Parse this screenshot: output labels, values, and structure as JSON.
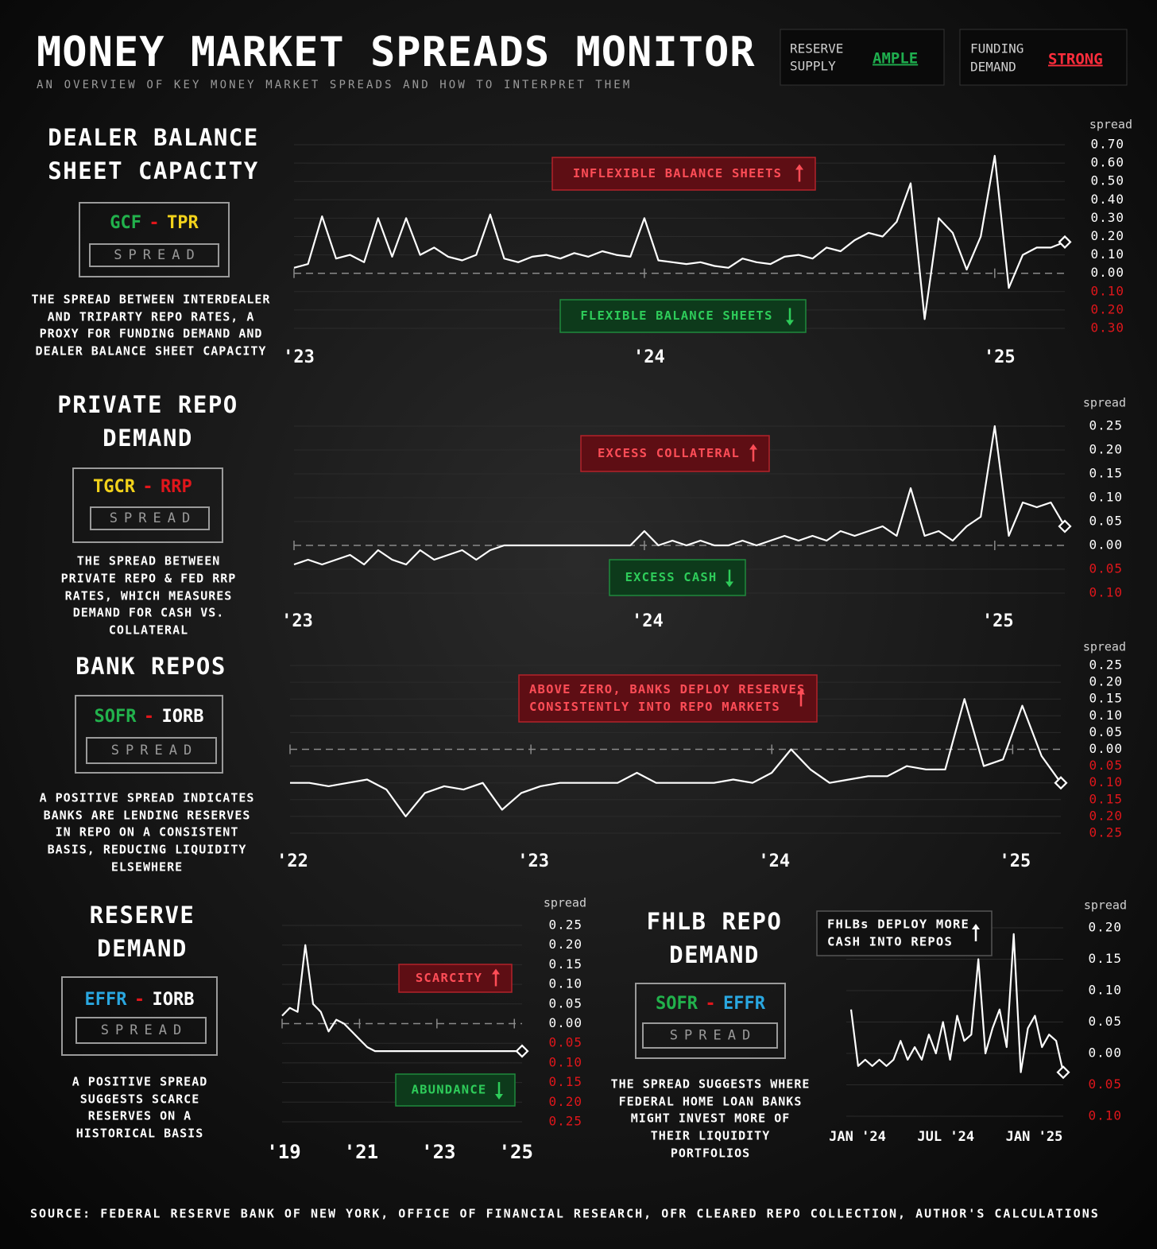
{
  "header": {
    "title": "MONEY MARKET SPREADS MONITOR",
    "subtitle": "AN OVERVIEW OF KEY MONEY MARKET SPREADS AND HOW TO INTERPRET THEM",
    "status": [
      {
        "label": [
          "RESERVE",
          "SUPPLY"
        ],
        "value": "AMPLE",
        "color": "#1fae4e"
      },
      {
        "label": [
          "FUNDING",
          "DEMAND"
        ],
        "value": "STRONG",
        "color": "#ff2d3c"
      }
    ]
  },
  "chart_data": [
    {
      "type": "line",
      "title": [
        "DEALER BALANCE",
        "SHEET CAPACITY"
      ],
      "terms": [
        {
          "text": "GCF",
          "color": "#22b14c"
        },
        {
          "text": "TPR",
          "color": "#f2d21b"
        }
      ],
      "separator": "-",
      "separator_color": "#e0161b",
      "spread_label": "SPREAD",
      "description": [
        "THE SPREAD BETWEEN INTERDEALER",
        "AND TRIPARTY REPO RATES, A",
        "PROXY FOR FUNDING DEMAND AND",
        "DEALER BALANCE SHEET CAPACITY"
      ],
      "y_axis_label": "spread",
      "zero_line": true,
      "tick_color": "#ffffff",
      "negative_tick_color": "#e0161b",
      "annotations": [
        {
          "text": [
            "INFLEXIBLE BALANCE SHEETS"
          ],
          "color": "#ff4d57",
          "arrow": "up"
        },
        {
          "text": [
            "FLEXIBLE BALANCE SHEETS"
          ],
          "color": "#2ecc5a",
          "arrow": "down"
        }
      ],
      "xlim": [
        2023,
        2025.2
      ],
      "xticks": [
        {
          "value": 2023,
          "label": "'23"
        },
        {
          "value": 2024,
          "label": "'24"
        },
        {
          "value": 2025,
          "label": "'25"
        }
      ],
      "ylim": [
        -0.3,
        0.7
      ],
      "yticks": [
        {
          "value": 0.7,
          "label": "0.70"
        },
        {
          "value": 0.6,
          "label": "0.60"
        },
        {
          "value": 0.5,
          "label": "0.50"
        },
        {
          "value": 0.4,
          "label": "0.40"
        },
        {
          "value": 0.3,
          "label": "0.30"
        },
        {
          "value": 0.2,
          "label": "0.20"
        },
        {
          "value": 0.1,
          "label": "0.10"
        },
        {
          "value": 0,
          "label": "0.00"
        },
        {
          "value": -0.1,
          "label": "0.10"
        },
        {
          "value": -0.2,
          "label": "0.20"
        },
        {
          "value": -0.3,
          "label": "0.30"
        }
      ],
      "series": [
        {
          "color": "#ffffff",
          "x": [
            2023,
            2023.04,
            2023.08,
            2023.12,
            2023.16,
            2023.2,
            2023.24,
            2023.28,
            2023.32,
            2023.36,
            2023.4,
            2023.44,
            2023.48,
            2023.52,
            2023.56,
            2023.6,
            2023.64,
            2023.68,
            2023.72,
            2023.76,
            2023.8,
            2023.84,
            2023.88,
            2023.92,
            2023.96,
            2024,
            2024.04,
            2024.08,
            2024.12,
            2024.16,
            2024.2,
            2024.24,
            2024.28,
            2024.32,
            2024.36,
            2024.4,
            2024.44,
            2024.48,
            2024.52,
            2024.56,
            2024.6,
            2024.64,
            2024.68,
            2024.72,
            2024.76,
            2024.8,
            2024.84,
            2024.88,
            2024.92,
            2024.96,
            2025,
            2025.04,
            2025.08,
            2025.12,
            2025.16,
            2025.2
          ],
          "values": [
            0.03,
            0.05,
            0.31,
            0.08,
            0.1,
            0.06,
            0.3,
            0.09,
            0.3,
            0.1,
            0.14,
            0.09,
            0.07,
            0.1,
            0.32,
            0.08,
            0.06,
            0.09,
            0.1,
            0.08,
            0.11,
            0.09,
            0.12,
            0.1,
            0.09,
            0.3,
            0.07,
            0.06,
            0.05,
            0.06,
            0.04,
            0.03,
            0.08,
            0.06,
            0.05,
            0.09,
            0.1,
            0.08,
            0.14,
            0.12,
            0.18,
            0.22,
            0.2,
            0.28,
            0.49,
            -0.25,
            0.3,
            0.22,
            0.02,
            0.2,
            0.64,
            -0.08,
            0.1,
            0.14,
            0.14,
            0.17
          ]
        }
      ]
    },
    {
      "type": "line",
      "title": [
        "PRIVATE REPO",
        "DEMAND"
      ],
      "terms": [
        {
          "text": "TGCR",
          "color": "#f2d21b"
        },
        {
          "text": "RRP",
          "color": "#e0161b"
        }
      ],
      "separator": "-",
      "separator_color": "#e0161b",
      "spread_label": "SPREAD",
      "description": [
        "THE SPREAD BETWEEN",
        "PRIVATE REPO & FED RRP",
        "RATES, WHICH MEASURES",
        "DEMAND FOR CASH VS.",
        "COLLATERAL"
      ],
      "y_axis_label": "spread",
      "zero_line": true,
      "tick_color": "#ffffff",
      "negative_tick_color": "#e0161b",
      "annotations": [
        {
          "text": [
            "EXCESS COLLATERAL"
          ],
          "color": "#ff4d57",
          "arrow": "up"
        },
        {
          "text": [
            "EXCESS CASH"
          ],
          "color": "#2ecc5a",
          "arrow": "down"
        }
      ],
      "xlim": [
        2023,
        2025.2
      ],
      "xticks": [
        {
          "value": 2023,
          "label": "'23"
        },
        {
          "value": 2024,
          "label": "'24"
        },
        {
          "value": 2025,
          "label": "'25"
        }
      ],
      "ylim": [
        -0.1,
        0.25
      ],
      "yticks": [
        {
          "value": 0.25,
          "label": "0.25"
        },
        {
          "value": 0.2,
          "label": "0.20"
        },
        {
          "value": 0.15,
          "label": "0.15"
        },
        {
          "value": 0.1,
          "label": "0.10"
        },
        {
          "value": 0.05,
          "label": "0.05"
        },
        {
          "value": 0,
          "label": "0.00"
        },
        {
          "value": -0.05,
          "label": "0.05"
        },
        {
          "value": -0.1,
          "label": "0.10"
        }
      ],
      "series": [
        {
          "color": "#ffffff",
          "x": [
            2023,
            2023.04,
            2023.08,
            2023.12,
            2023.16,
            2023.2,
            2023.24,
            2023.28,
            2023.32,
            2023.36,
            2023.4,
            2023.44,
            2023.48,
            2023.52,
            2023.56,
            2023.6,
            2023.64,
            2023.68,
            2023.72,
            2023.76,
            2023.8,
            2023.84,
            2023.88,
            2023.92,
            2023.96,
            2024,
            2024.04,
            2024.08,
            2024.12,
            2024.16,
            2024.2,
            2024.24,
            2024.28,
            2024.32,
            2024.36,
            2024.4,
            2024.44,
            2024.48,
            2024.52,
            2024.56,
            2024.6,
            2024.64,
            2024.68,
            2024.72,
            2024.76,
            2024.8,
            2024.84,
            2024.88,
            2024.92,
            2024.96,
            2025,
            2025.04,
            2025.08,
            2025.12,
            2025.16,
            2025.2
          ],
          "values": [
            -0.04,
            -0.03,
            -0.04,
            -0.03,
            -0.02,
            -0.04,
            -0.01,
            -0.03,
            -0.04,
            -0.01,
            -0.03,
            -0.02,
            -0.01,
            -0.03,
            -0.01,
            0,
            0,
            0,
            0,
            0,
            0,
            0,
            0,
            0,
            0,
            0.03,
            0,
            0.01,
            0,
            0.01,
            0,
            0,
            0.01,
            0,
            0.01,
            0.02,
            0.01,
            0.02,
            0.01,
            0.03,
            0.02,
            0.03,
            0.04,
            0.02,
            0.12,
            0.02,
            0.03,
            0.01,
            0.04,
            0.06,
            0.25,
            0.02,
            0.09,
            0.08,
            0.09,
            0.04
          ]
        }
      ]
    },
    {
      "type": "line",
      "title": [
        "BANK REPOS"
      ],
      "terms": [
        {
          "text": "SOFR",
          "color": "#22b14c"
        },
        {
          "text": "IORB",
          "color": "#ffffff"
        }
      ],
      "separator": "-",
      "separator_color": "#e0161b",
      "spread_label": "SPREAD",
      "description": [
        "A POSITIVE SPREAD INDICATES",
        "BANKS ARE LENDING RESERVES",
        "IN REPO ON A CONSISTENT",
        "BASIS, REDUCING LIQUIDITY",
        "ELSEWHERE"
      ],
      "y_axis_label": "spread",
      "zero_line": true,
      "tick_color": "#ffffff",
      "negative_tick_color": "#e0161b",
      "annotations": [
        {
          "text": [
            "ABOVE ZERO, BANKS DEPLOY RESERVES",
            "CONSISTENTLY INTO REPO MARKETS"
          ],
          "color": "#ff4d57",
          "arrow": "up"
        }
      ],
      "xlim": [
        2022,
        2025.2
      ],
      "xticks": [
        {
          "value": 2022,
          "label": "'22"
        },
        {
          "value": 2023,
          "label": "'23"
        },
        {
          "value": 2024,
          "label": "'24"
        },
        {
          "value": 2025,
          "label": "'25"
        }
      ],
      "ylim": [
        -0.25,
        0.25
      ],
      "yticks": [
        {
          "value": 0.25,
          "label": "0.25"
        },
        {
          "value": 0.2,
          "label": "0.20"
        },
        {
          "value": 0.15,
          "label": "0.15"
        },
        {
          "value": 0.1,
          "label": "0.10"
        },
        {
          "value": 0.05,
          "label": "0.05"
        },
        {
          "value": 0,
          "label": "0.00"
        },
        {
          "value": -0.05,
          "label": "0.05"
        },
        {
          "value": -0.1,
          "label": "0.10"
        },
        {
          "value": -0.15,
          "label": "0.15"
        },
        {
          "value": -0.2,
          "label": "0.20"
        },
        {
          "value": -0.25,
          "label": "0.25"
        }
      ],
      "series": [
        {
          "color": "#ffffff",
          "x": [
            2022,
            2022.08,
            2022.16,
            2022.24,
            2022.32,
            2022.4,
            2022.48,
            2022.56,
            2022.64,
            2022.72,
            2022.8,
            2022.88,
            2022.96,
            2023.04,
            2023.12,
            2023.2,
            2023.28,
            2023.36,
            2023.44,
            2023.52,
            2023.6,
            2023.68,
            2023.76,
            2023.84,
            2023.92,
            2024,
            2024.08,
            2024.16,
            2024.24,
            2024.32,
            2024.4,
            2024.48,
            2024.56,
            2024.64,
            2024.72,
            2024.8,
            2024.88,
            2024.96,
            2025.04,
            2025.12,
            2025.2
          ],
          "values": [
            -0.1,
            -0.1,
            -0.11,
            -0.1,
            -0.09,
            -0.12,
            -0.2,
            -0.13,
            -0.11,
            -0.12,
            -0.1,
            -0.18,
            -0.13,
            -0.11,
            -0.1,
            -0.1,
            -0.1,
            -0.1,
            -0.07,
            -0.1,
            -0.1,
            -0.1,
            -0.1,
            -0.09,
            -0.1,
            -0.07,
            0.0,
            -0.06,
            -0.1,
            -0.09,
            -0.08,
            -0.08,
            -0.05,
            -0.06,
            -0.06,
            0.15,
            -0.05,
            -0.03,
            0.13,
            -0.02,
            -0.1
          ]
        }
      ]
    },
    {
      "type": "line",
      "title": [
        "RESERVE",
        "DEMAND"
      ],
      "terms": [
        {
          "text": "EFFR",
          "color": "#2aa7e0"
        },
        {
          "text": "IORB",
          "color": "#ffffff"
        }
      ],
      "separator": "-",
      "separator_color": "#e0161b",
      "spread_label": "SPREAD",
      "description": [
        "A POSITIVE SPREAD",
        "SUGGESTS SCARCE",
        "RESERVES ON A",
        "HISTORICAL BASIS"
      ],
      "y_axis_label": "spread",
      "zero_line": true,
      "tick_color": "#ffffff",
      "negative_tick_color": "#e0161b",
      "annotations": [
        {
          "text": [
            "SCARCITY"
          ],
          "color": "#ff4d57",
          "arrow": "up"
        },
        {
          "text": [
            "ABUNDANCE"
          ],
          "color": "#2ecc5a",
          "arrow": "down"
        }
      ],
      "xlim": [
        2019,
        2025.2
      ],
      "xticks": [
        {
          "value": 2019,
          "label": "'19"
        },
        {
          "value": 2021,
          "label": "'21"
        },
        {
          "value": 2023,
          "label": "'23"
        },
        {
          "value": 2025,
          "label": "'25"
        }
      ],
      "ylim": [
        -0.25,
        0.25
      ],
      "yticks": [
        {
          "value": 0.25,
          "label": "0.25"
        },
        {
          "value": 0.2,
          "label": "0.20"
        },
        {
          "value": 0.15,
          "label": "0.15"
        },
        {
          "value": 0.1,
          "label": "0.10"
        },
        {
          "value": 0.05,
          "label": "0.05"
        },
        {
          "value": 0,
          "label": "0.00"
        },
        {
          "value": -0.05,
          "label": "0.05"
        },
        {
          "value": -0.1,
          "label": "0.10"
        },
        {
          "value": -0.15,
          "label": "0.15"
        },
        {
          "value": -0.2,
          "label": "0.20"
        },
        {
          "value": -0.25,
          "label": "0.25"
        }
      ],
      "series": [
        {
          "color": "#ffffff",
          "x": [
            2019,
            2019.2,
            2019.4,
            2019.6,
            2019.8,
            2020,
            2020.2,
            2020.4,
            2020.6,
            2020.8,
            2021,
            2021.2,
            2021.4,
            2021.6,
            2021.8,
            2022,
            2022.2,
            2022.4,
            2022.6,
            2022.8,
            2023,
            2023.2,
            2023.4,
            2023.6,
            2023.8,
            2024,
            2024.2,
            2024.4,
            2024.6,
            2024.8,
            2025,
            2025.2
          ],
          "values": [
            0.02,
            0.04,
            0.03,
            0.2,
            0.05,
            0.03,
            -0.02,
            0.01,
            0.0,
            -0.02,
            -0.04,
            -0.06,
            -0.07,
            -0.07,
            -0.07,
            -0.07,
            -0.07,
            -0.07,
            -0.07,
            -0.07,
            -0.07,
            -0.07,
            -0.07,
            -0.07,
            -0.07,
            -0.07,
            -0.07,
            -0.07,
            -0.07,
            -0.07,
            -0.07,
            -0.07
          ]
        }
      ]
    },
    {
      "type": "line",
      "title": [
        "FHLB REPO",
        "DEMAND"
      ],
      "terms": [
        {
          "text": "SOFR",
          "color": "#22b14c"
        },
        {
          "text": "EFFR",
          "color": "#2aa7e0"
        }
      ],
      "separator": "-",
      "separator_color": "#e0161b",
      "spread_label": "SPREAD",
      "description": [
        "THE SPREAD SUGGESTS WHERE",
        "FEDERAL HOME LOAN BANKS",
        "MIGHT INVEST MORE OF",
        "THEIR LIQUIDITY",
        "PORTFOLIOS"
      ],
      "y_axis_label": "spread",
      "zero_line": false,
      "tick_color": "#ffffff",
      "negative_tick_color": "#e0161b",
      "annotations": [
        {
          "text": [
            "FHLBs DEPLOY MORE",
            "CASH INTO REPOS"
          ],
          "color": "#ffffff",
          "arrow": "up"
        }
      ],
      "xlim": [
        2024,
        2025.2
      ],
      "xticks": [
        {
          "value": 2024,
          "label": "JAN '24"
        },
        {
          "value": 2024.5,
          "label": "JUL '24"
        },
        {
          "value": 2025,
          "label": "JAN '25"
        }
      ],
      "ylim": [
        -0.1,
        0.2
      ],
      "yticks": [
        {
          "value": 0.2,
          "label": "0.20"
        },
        {
          "value": 0.15,
          "label": "0.15"
        },
        {
          "value": 0.1,
          "label": "0.10"
        },
        {
          "value": 0.05,
          "label": "0.05"
        },
        {
          "value": 0,
          "label": "0.00"
        },
        {
          "value": -0.05,
          "label": "0.05"
        },
        {
          "value": -0.1,
          "label": "0.10"
        }
      ],
      "series": [
        {
          "color": "#ffffff",
          "x": [
            2024,
            2024.04,
            2024.08,
            2024.12,
            2024.16,
            2024.2,
            2024.24,
            2024.28,
            2024.32,
            2024.36,
            2024.4,
            2024.44,
            2024.48,
            2024.52,
            2024.56,
            2024.6,
            2024.64,
            2024.68,
            2024.72,
            2024.76,
            2024.8,
            2024.84,
            2024.88,
            2024.92,
            2024.96,
            2025,
            2025.04,
            2025.08,
            2025.12,
            2025.16,
            2025.2
          ],
          "values": [
            0.07,
            -0.02,
            -0.01,
            -0.02,
            -0.01,
            -0.02,
            -0.01,
            0.02,
            -0.01,
            0.01,
            -0.01,
            0.03,
            0.0,
            0.05,
            -0.01,
            0.06,
            0.02,
            0.03,
            0.15,
            0.0,
            0.04,
            0.07,
            0.01,
            0.19,
            -0.03,
            0.04,
            0.06,
            0.01,
            0.03,
            0.02,
            -0.03
          ]
        }
      ]
    }
  ],
  "source": "SOURCE: FEDERAL RESERVE BANK OF NEW YORK, OFFICE OF FINANCIAL RESEARCH, OFR CLEARED REPO COLLECTION, AUTHOR'S CALCULATIONS"
}
